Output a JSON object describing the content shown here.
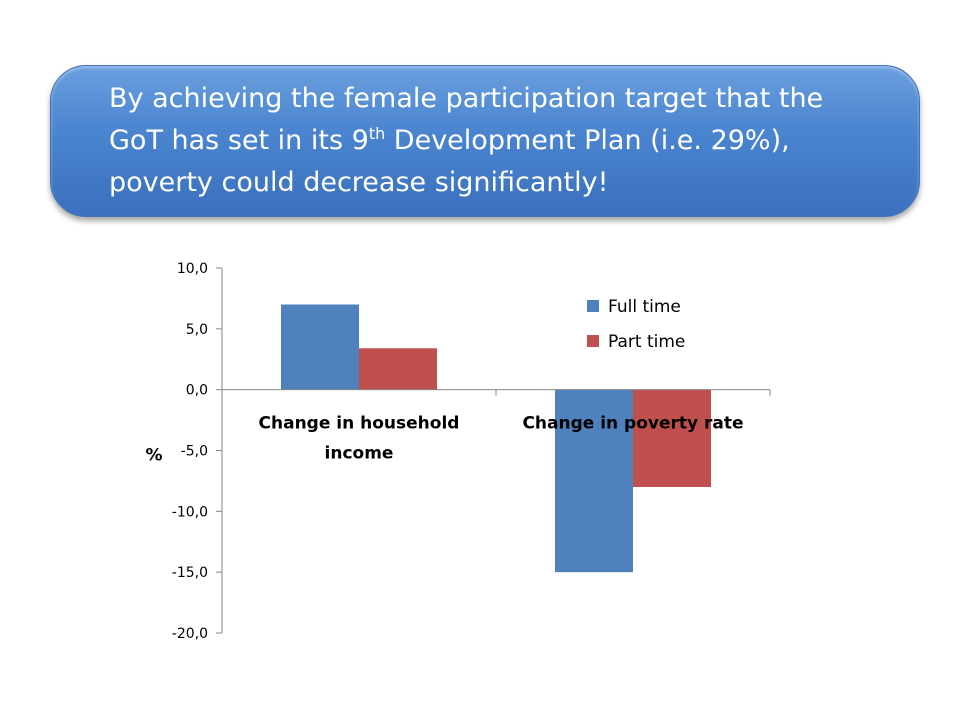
{
  "banner": {
    "line1": "By achieving the female participation target that the",
    "line2_a": "GoT has set in its 9",
    "line2_sup": "th",
    "line2_b": " Development Plan (i.e. 29%),",
    "line3": "poverty could decrease significantly!"
  },
  "chart_data": {
    "type": "bar",
    "title": "",
    "xlabel": "",
    "ylabel": "%",
    "ylim": [
      -20,
      10
    ],
    "yticks": [
      10,
      5,
      0,
      -5,
      -10,
      -15,
      -20
    ],
    "ytick_labels": [
      "10,0",
      "5,0",
      "0,0",
      "-5,0",
      "-10,0",
      "-15,0",
      "-20,0"
    ],
    "categories": [
      [
        "Change in household",
        "income"
      ],
      [
        "Change in poverty rate"
      ]
    ],
    "series": [
      {
        "name": "Full time",
        "values": [
          7.0,
          -15.0
        ],
        "color": "#4f81bd"
      },
      {
        "name": "Part time",
        "values": [
          3.4,
          -8.0
        ],
        "color": "#c0504d"
      }
    ],
    "legend_position": "top-right",
    "grid": false
  }
}
